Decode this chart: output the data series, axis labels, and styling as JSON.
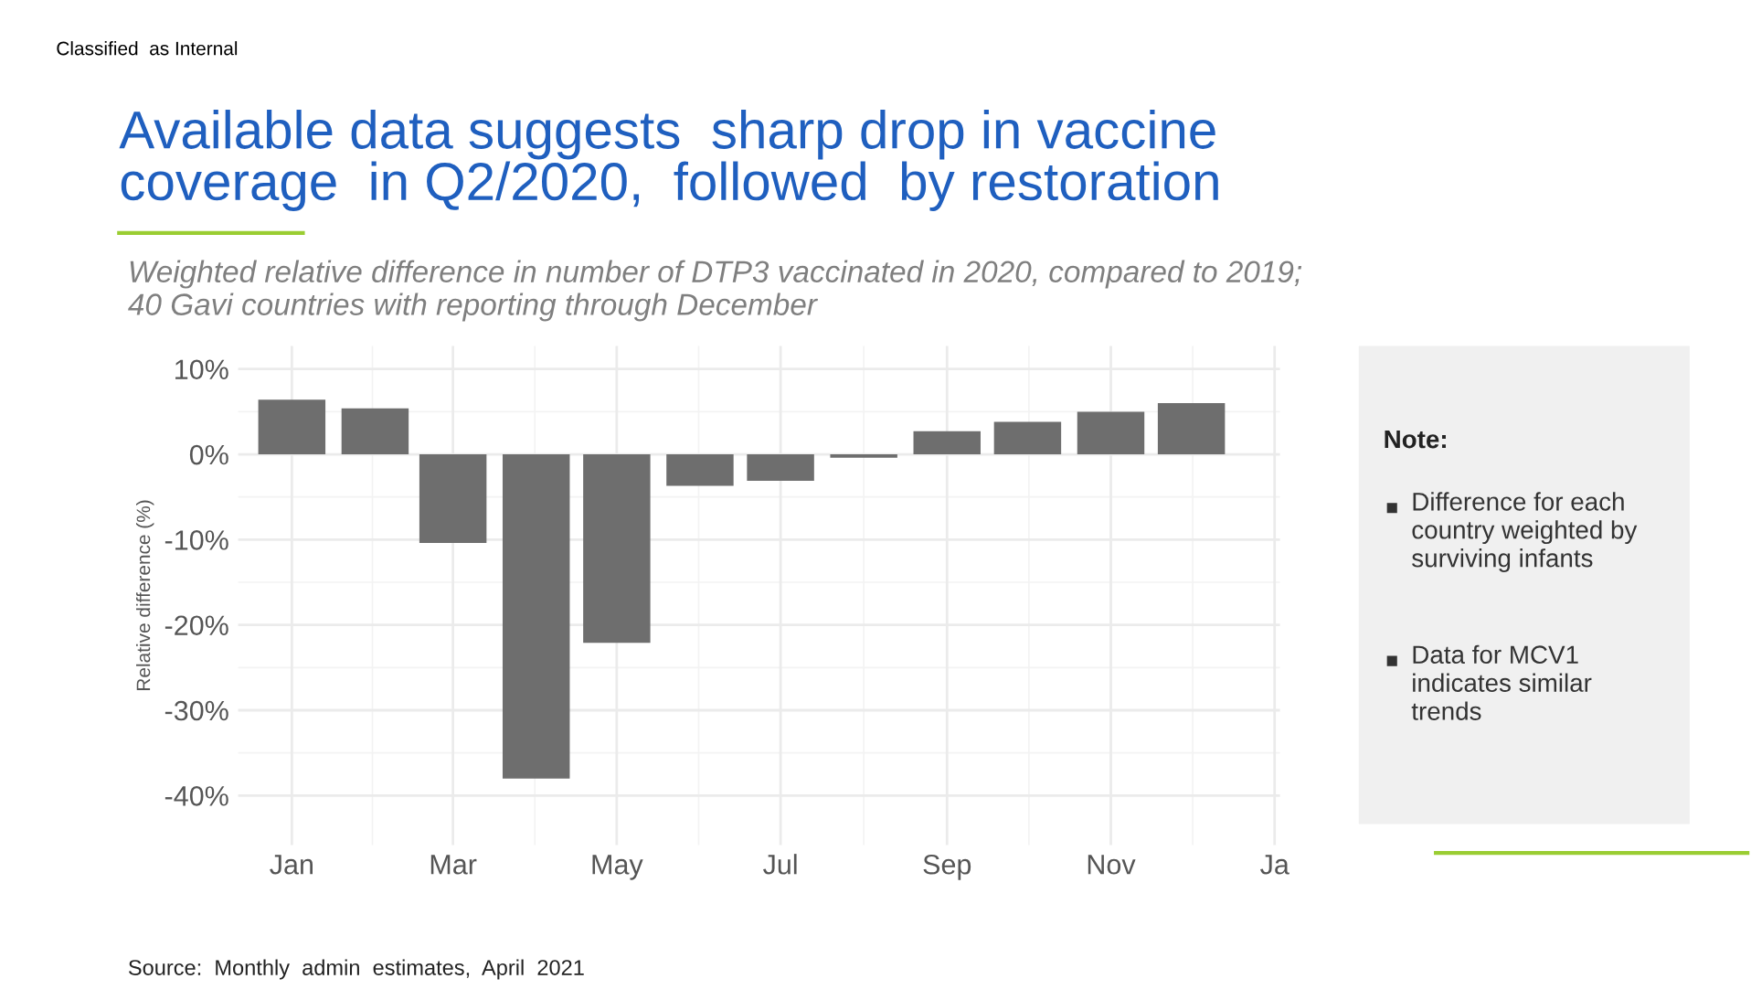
{
  "chart_data": {
    "type": "bar",
    "title": "Available data suggests  sharp drop in vaccine\ncoverage  in Q2/2020,  followed  by restoration",
    "subtitle": "Weighted relative difference in number of DTP3 vaccinated in 2020, compared to 2019;\n40 Gavi countries with reporting through December",
    "ylabel": "Relative difference (%)",
    "x": [
      "2020-01",
      "2020-02",
      "2020-03",
      "2020-04",
      "2020-05",
      "2020-06",
      "2020-07",
      "2020-08",
      "2020-09",
      "2020-10",
      "2020-11",
      "2020-12"
    ],
    "values": [
      6.4,
      5.4,
      -10.4,
      -38.0,
      -22.1,
      -3.7,
      -3.1,
      -0.4,
      2.7,
      3.8,
      5.0,
      6.0
    ],
    "color": "#6e6e6e",
    "xlim": [
      "2019-12-12",
      "2021-01-03"
    ],
    "xticks": [
      {
        "value": "2020-01",
        "label": "Jan"
      },
      {
        "value": "2020-03",
        "label": "Mar"
      },
      {
        "value": "2020-05",
        "label": "May"
      },
      {
        "value": "2020-07",
        "label": "Jul"
      },
      {
        "value": "2020-09",
        "label": "Sep"
      },
      {
        "value": "2020-11",
        "label": "Nov"
      },
      {
        "value": "2021-01",
        "label": "Ja"
      }
    ],
    "ylim": [
      -45.8,
      12.7
    ],
    "yticks": [
      {
        "value": -40,
        "label": "-40%"
      },
      {
        "value": -30,
        "label": "-30%"
      },
      {
        "value": -20,
        "label": "-20%"
      },
      {
        "value": -10,
        "label": "-10%"
      },
      {
        "value": 0,
        "label": "0%"
      },
      {
        "value": 10,
        "label": "10%"
      }
    ],
    "grid": true,
    "annotations": [
      "Classified  as Internal",
      "Note:",
      "Difference for each\ncountry weighted by\nsurviving infants",
      "Data for MCV1\nindicates similar\ntrends",
      "Source:  Monthly  admin  estimates,  April  2021"
    ]
  }
}
